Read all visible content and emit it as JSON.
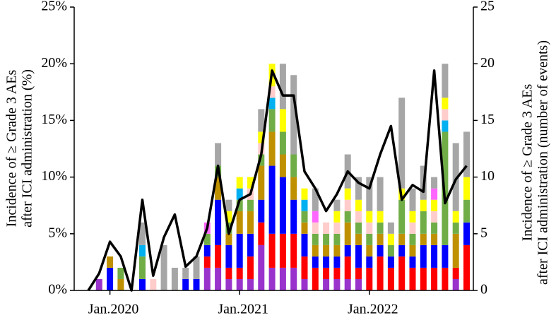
{
  "chart_data": {
    "type": "bar",
    "categories": [
      null,
      null,
      "Jan.2020",
      null,
      null,
      null,
      null,
      null,
      null,
      null,
      null,
      null,
      null,
      null,
      "Jan.2021",
      null,
      null,
      null,
      null,
      null,
      null,
      null,
      null,
      null,
      null,
      null,
      "Jan.2022",
      null,
      null,
      null,
      null,
      null,
      null,
      null,
      null,
      null
    ],
    "ylabel": [
      "Incidence of ≥ Grade 3 AEs",
      "after ICI administration (%)"
    ],
    "y2label": [
      "Incidence of ≥ Grade 3 AEs",
      "after ICI administration (number of events)"
    ],
    "ylim": [
      0,
      25
    ],
    "yticks": [
      {
        "value": 0,
        "label": "0%"
      },
      {
        "value": 5,
        "label": "5%"
      },
      {
        "value": 10,
        "label": "10%"
      },
      {
        "value": 15,
        "label": "15%"
      },
      {
        "value": 20,
        "label": "20%"
      },
      {
        "value": 25,
        "label": "25%"
      }
    ],
    "y2lim": [
      0,
      25
    ],
    "y2ticks": [
      0,
      5,
      10,
      15,
      20,
      25
    ],
    "series": [
      {
        "color": "#9933cc",
        "axis": "y2",
        "values": [
          0,
          1,
          0,
          0,
          0,
          0,
          0,
          0,
          0,
          0,
          0,
          2,
          2,
          1,
          1,
          1,
          4,
          2,
          2,
          2,
          1,
          0,
          1,
          1,
          1,
          1,
          0,
          0,
          0,
          0,
          0,
          0,
          0,
          0,
          1,
          0
        ]
      },
      {
        "color": "#ff0000",
        "axis": "y2",
        "values": [
          0,
          0,
          0,
          0,
          0,
          0,
          0,
          0,
          0,
          0,
          0,
          1,
          2,
          1,
          1,
          2,
          2,
          3,
          3,
          3,
          2,
          2,
          1,
          1,
          2,
          1,
          2,
          3,
          2,
          3,
          2,
          2,
          2,
          2,
          1,
          4
        ]
      },
      {
        "color": "#0000ff",
        "axis": "y2",
        "values": [
          0,
          0,
          2,
          0,
          0,
          1,
          0,
          0,
          0,
          1,
          1,
          1,
          4,
          2,
          3,
          2,
          2,
          6,
          5,
          3,
          2,
          1,
          1,
          1,
          1,
          2,
          1,
          1,
          1,
          1,
          1,
          2,
          2,
          2,
          0,
          2
        ]
      },
      {
        "color": "#bf9000",
        "axis": "y2",
        "values": [
          0,
          0,
          1,
          1,
          0,
          0,
          0,
          0,
          0,
          0,
          0,
          0,
          2,
          1,
          2,
          2,
          3,
          3,
          2,
          2,
          1,
          1,
          1,
          1,
          2,
          1,
          1,
          1,
          0,
          1,
          1,
          1,
          1,
          0,
          3,
          0
        ]
      },
      {
        "color": "#70ad47",
        "axis": "y2",
        "values": [
          0,
          0,
          0,
          1,
          0,
          2,
          0,
          0,
          0,
          0,
          0,
          1,
          1,
          1,
          1,
          1,
          1,
          2,
          2,
          2,
          1,
          1,
          1,
          1,
          1,
          1,
          1,
          1,
          1,
          3,
          1,
          2,
          1,
          10,
          1,
          2
        ]
      },
      {
        "color": "#00b0f0",
        "axis": "y2",
        "values": [
          0,
          0,
          0,
          0,
          0,
          1,
          0,
          0,
          0,
          0,
          0,
          0,
          0,
          0,
          1,
          0,
          0,
          1,
          0,
          0,
          1,
          0,
          0,
          0,
          0,
          0,
          0,
          0,
          0,
          0,
          0,
          0,
          0,
          1,
          0,
          0
        ]
      },
      {
        "color": "#ffcccc",
        "axis": "y2",
        "values": [
          0,
          0,
          0,
          0,
          0,
          0,
          1,
          0,
          0,
          0,
          0,
          0,
          0,
          0,
          0,
          1,
          1,
          1,
          0,
          0,
          0,
          1,
          1,
          1,
          1,
          1,
          1,
          0,
          0,
          0,
          1,
          0,
          1,
          1,
          0,
          0
        ]
      },
      {
        "color": "#ffff00",
        "axis": "y2",
        "values": [
          0,
          0,
          0,
          0,
          0,
          0,
          0,
          0,
          0,
          0,
          0,
          0,
          0,
          1,
          1,
          1,
          1,
          2,
          2,
          0,
          1,
          0,
          0,
          1,
          1,
          1,
          1,
          1,
          1,
          1,
          1,
          1,
          1,
          1,
          1,
          2
        ]
      },
      {
        "color": "#ff66ff",
        "axis": "y2",
        "values": [
          0,
          0,
          0,
          0,
          0,
          0,
          0,
          0,
          0,
          0,
          0,
          1,
          0,
          0,
          0,
          0,
          0,
          0,
          0,
          0,
          0,
          1,
          0,
          0,
          0,
          0,
          0,
          0,
          0,
          0,
          0,
          0,
          1,
          0,
          0,
          0
        ]
      },
      {
        "color": "#a6a6a6",
        "axis": "y2",
        "values": [
          0,
          0,
          0,
          0,
          0,
          2,
          0,
          4,
          2,
          1,
          2,
          0,
          2,
          1,
          0,
          0,
          2,
          0,
          4,
          7,
          0,
          2,
          0,
          1,
          3,
          2,
          3,
          3,
          1,
          8,
          2,
          3,
          1,
          3,
          6,
          4
        ]
      }
    ],
    "line": {
      "type": "line",
      "color": "#000000",
      "values": [
        0,
        1.5,
        4.3,
        3,
        0,
        8,
        1.3,
        4.7,
        6.7,
        2.1,
        3,
        5.5,
        11,
        5,
        8,
        8.5,
        12,
        19.4,
        17.2,
        17.2,
        10.5,
        9,
        7,
        8.5,
        10.5,
        9.5,
        9,
        12,
        14.5,
        8,
        9.3,
        8.7,
        19.4,
        7.7,
        9.8,
        11
      ]
    }
  }
}
